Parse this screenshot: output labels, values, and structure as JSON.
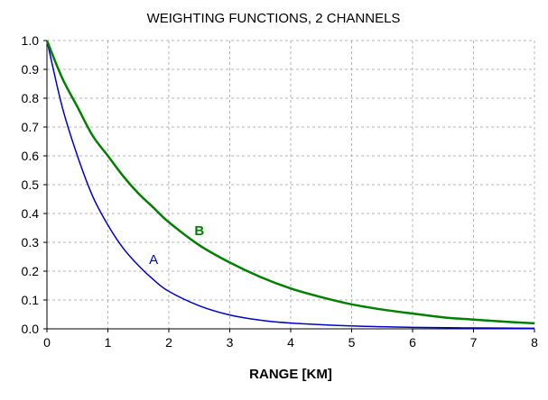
{
  "chart_data": {
    "type": "line",
    "title": "WEIGHTING FUNCTIONS, 2 CHANNELS",
    "xlabel": "RANGE [KM]",
    "ylabel": "",
    "xlim": [
      0,
      8
    ],
    "ylim": [
      0,
      1.0
    ],
    "x_ticks": [
      "0",
      "1",
      "2",
      "3",
      "4",
      "5",
      "6",
      "7",
      "8"
    ],
    "y_ticks": [
      "0.0",
      "0.1",
      "0.2",
      "0.3",
      "0.4",
      "0.5",
      "0.6",
      "0.7",
      "0.8",
      "0.9",
      "1.0"
    ],
    "grid": true,
    "series": [
      {
        "name": "A",
        "color": "#0000cc",
        "label_at": [
          1.75,
          0.24
        ],
        "x": [
          0,
          0.25,
          0.5,
          0.75,
          1.0,
          1.25,
          1.5,
          1.75,
          2.0,
          2.5,
          3.0,
          3.5,
          4.0,
          5.0,
          6.0,
          7.0,
          8.0
        ],
        "y": [
          1.0,
          0.77,
          0.6,
          0.46,
          0.36,
          0.28,
          0.22,
          0.17,
          0.13,
          0.08,
          0.048,
          0.03,
          0.02,
          0.01,
          0.005,
          0.003,
          0.002
        ]
      },
      {
        "name": "B",
        "color": "#008000",
        "label_at": [
          2.5,
          0.34
        ],
        "x": [
          0,
          0.25,
          0.5,
          0.75,
          1.0,
          1.25,
          1.5,
          1.75,
          2.0,
          2.5,
          3.0,
          3.5,
          4.0,
          4.5,
          5.0,
          5.5,
          6.0,
          6.5,
          7.0,
          7.5,
          8.0
        ],
        "y": [
          1.0,
          0.87,
          0.77,
          0.67,
          0.6,
          0.53,
          0.47,
          0.42,
          0.37,
          0.29,
          0.23,
          0.18,
          0.14,
          0.11,
          0.085,
          0.067,
          0.053,
          0.04,
          0.032,
          0.025,
          0.019
        ]
      }
    ]
  }
}
